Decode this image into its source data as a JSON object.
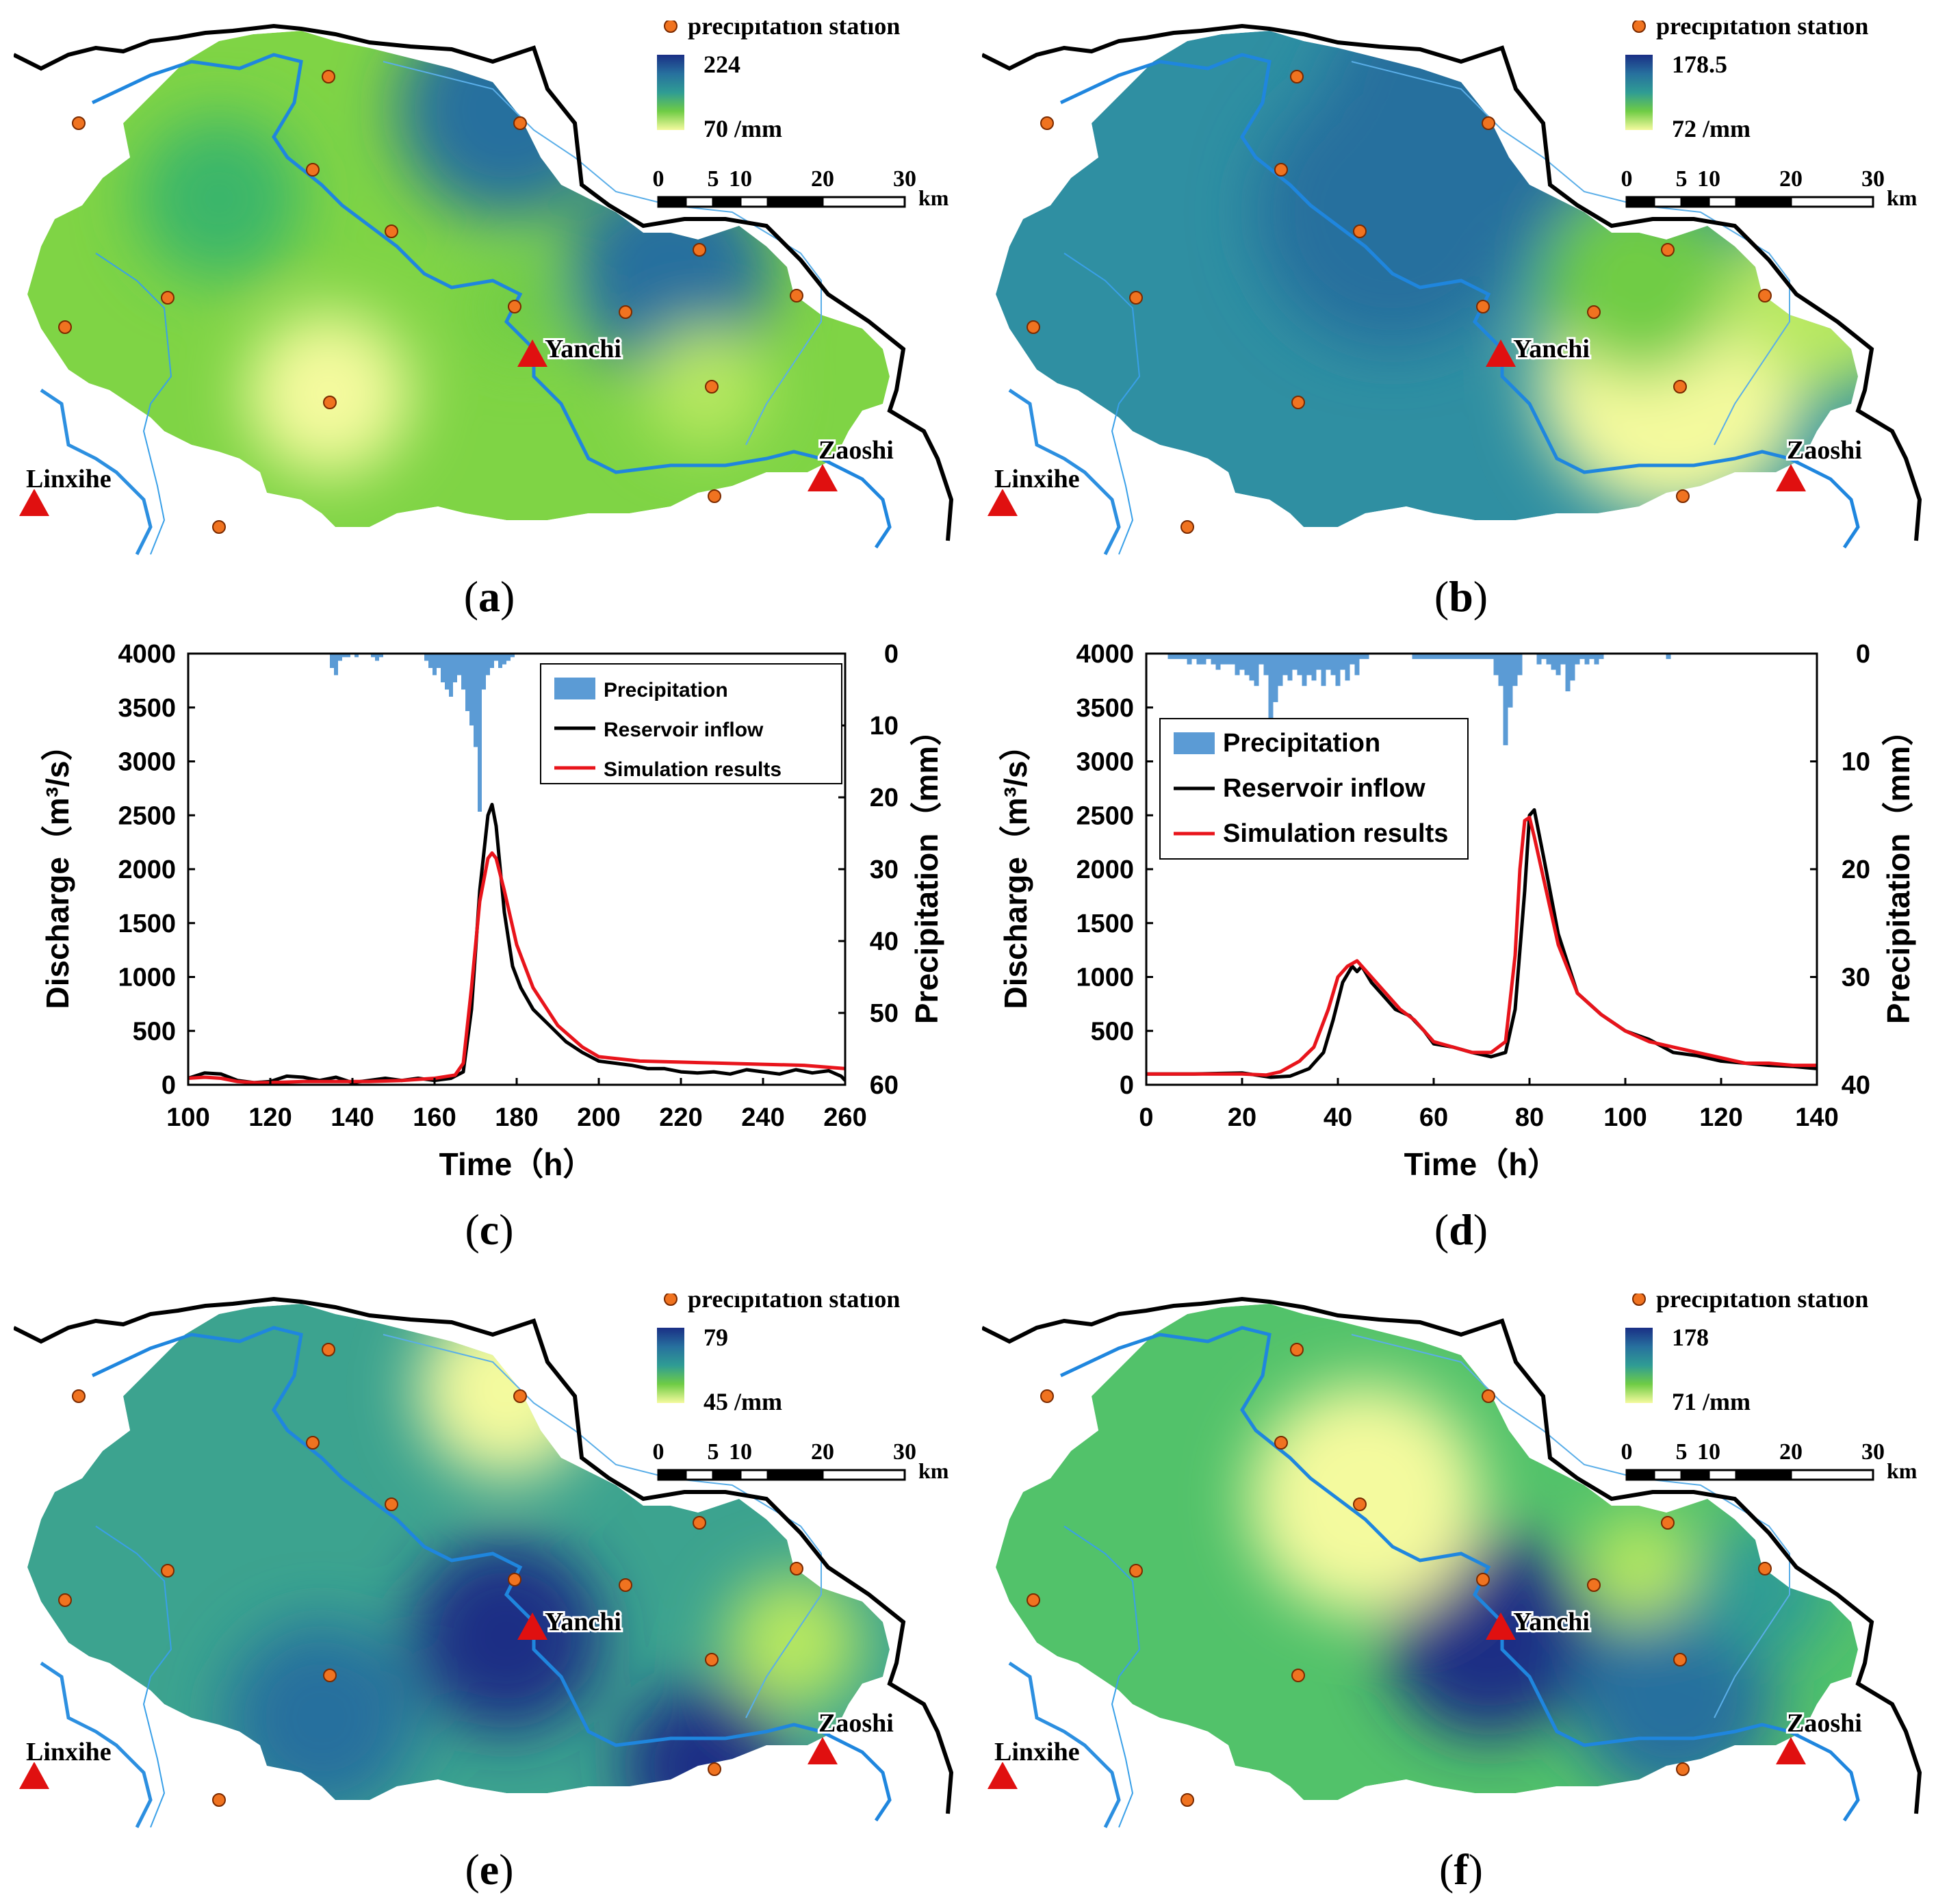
{
  "maps": [
    {
      "id": "a",
      "caption_letter": "a",
      "legend_title": "precipitation station",
      "legend_max": "224",
      "legend_min": "70 /mm",
      "colors": {
        "base": "#7fd445",
        "high": "#1a2f85",
        "low": "#f4fa9e"
      }
    },
    {
      "id": "b",
      "caption_letter": "b",
      "legend_title": "precipitation station",
      "legend_max": "178.5",
      "legend_min": "72 /mm",
      "colors": {
        "base": "#2f8fa2",
        "high": "#1a2f85",
        "low": "#f4fa9e"
      }
    },
    {
      "id": "e",
      "caption_letter": "e",
      "legend_title": "precipitation station",
      "legend_max": "79",
      "legend_min": "45 /mm",
      "colors": {
        "base": "#3ca38f",
        "high": "#1a2f85",
        "low": "#f4fa9e"
      }
    },
    {
      "id": "f",
      "caption_letter": "f",
      "legend_title": "precipitation station",
      "legend_max": "178",
      "legend_min": "71 /mm",
      "colors": {
        "base": "#52c26a",
        "high": "#1a2f85",
        "low": "#f4fa9e"
      }
    }
  ],
  "map_labels": {
    "yanchi": "Yanchi",
    "zaoshi": "Zaoshi",
    "linxihe": "Linxihe"
  },
  "scale_bar": {
    "ticks": [
      "0",
      "5",
      "10",
      "20",
      "30"
    ],
    "unit": "km"
  },
  "chart_data": [
    {
      "id": "c",
      "caption_letter": "c",
      "type": "line",
      "xlabel": "Time（h）",
      "ylabel": "Discharge（m³/s）",
      "y2label": "Precipitation（mm）",
      "xlim": [
        100,
        260
      ],
      "ylim": [
        0,
        4000
      ],
      "y2lim": [
        0,
        60
      ],
      "xticks": [
        "100",
        "120",
        "140",
        "160",
        "180",
        "200",
        "220",
        "240",
        "260"
      ],
      "yticks": [
        "0",
        "500",
        "1000",
        "1500",
        "2000",
        "2500",
        "3000",
        "3500",
        "4000"
      ],
      "y2ticks": [
        "0",
        "10",
        "20",
        "30",
        "40",
        "50",
        "60"
      ],
      "legend": [
        "Precipitation",
        "Reservoir inflow",
        "Simulation results"
      ],
      "series": [
        {
          "name": "Reservoir inflow",
          "color": "#000000",
          "x": [
            100,
            104,
            108,
            112,
            116,
            120,
            124,
            128,
            132,
            136,
            140,
            144,
            148,
            152,
            156,
            160,
            164,
            167,
            169,
            171,
            173,
            174,
            175,
            177,
            179,
            181,
            184,
            188,
            192,
            196,
            200,
            204,
            208,
            212,
            216,
            220,
            224,
            228,
            232,
            236,
            240,
            244,
            248,
            252,
            256,
            259,
            260
          ],
          "y": [
            60,
            110,
            100,
            40,
            20,
            30,
            80,
            70,
            40,
            70,
            20,
            40,
            60,
            40,
            60,
            40,
            60,
            120,
            700,
            1800,
            2500,
            2600,
            2400,
            1600,
            1100,
            900,
            700,
            550,
            400,
            300,
            220,
            200,
            180,
            150,
            150,
            120,
            110,
            120,
            100,
            140,
            120,
            100,
            140,
            110,
            130,
            80,
            40
          ]
        },
        {
          "name": "Simulation results",
          "color": "#e8141b",
          "x": [
            100,
            104,
            108,
            112,
            116,
            120,
            128,
            136,
            144,
            152,
            160,
            165,
            167,
            169,
            171,
            173,
            174,
            175,
            177,
            180,
            184,
            190,
            196,
            200,
            210,
            220,
            230,
            240,
            250,
            260
          ],
          "y": [
            60,
            70,
            60,
            30,
            20,
            20,
            30,
            30,
            30,
            40,
            60,
            90,
            200,
            900,
            1700,
            2100,
            2150,
            2100,
            1800,
            1300,
            900,
            550,
            350,
            260,
            220,
            210,
            200,
            190,
            180,
            150
          ]
        }
      ],
      "precip": {
        "name": "Precipitation",
        "color": "#5b9bd5",
        "x": [
          135,
          136,
          137,
          138,
          139,
          141,
          145,
          146,
          147,
          158,
          159,
          160,
          161,
          162,
          163,
          164,
          165,
          166,
          167,
          168,
          169,
          170,
          171,
          172,
          173,
          174,
          175,
          176,
          177,
          178,
          179
        ],
        "y": [
          2,
          3,
          1,
          0.5,
          0.5,
          0.5,
          0.5,
          1,
          0.5,
          1,
          2,
          3,
          2,
          4,
          5,
          6,
          4,
          3,
          5,
          8,
          10,
          13,
          22,
          5,
          3,
          2,
          1,
          2,
          1.5,
          1,
          0.5
        ]
      }
    },
    {
      "id": "d",
      "caption_letter": "d",
      "type": "line",
      "xlabel": "Time（h）",
      "ylabel": "Discharge（m³/s）",
      "y2label": "Precipitation（mm）",
      "xlim": [
        0,
        140
      ],
      "ylim": [
        0,
        4000
      ],
      "y2lim": [
        0,
        40
      ],
      "xticks": [
        "0",
        "20",
        "40",
        "60",
        "80",
        "100",
        "120",
        "140"
      ],
      "yticks": [
        "0",
        "500",
        "1000",
        "1500",
        "2000",
        "2500",
        "3000",
        "3500",
        "4000"
      ],
      "y2ticks": [
        "0",
        "10",
        "20",
        "30",
        "40"
      ],
      "legend": [
        "Precipitation",
        "Reservoir inflow",
        "Simulation results"
      ],
      "series": [
        {
          "name": "Reservoir inflow",
          "color": "#000000",
          "x": [
            0,
            10,
            20,
            26,
            30,
            34,
            37,
            39,
            41,
            43,
            44,
            45,
            47,
            49,
            52,
            55,
            58,
            60,
            64,
            68,
            72,
            75,
            77,
            79,
            80,
            81,
            83,
            86,
            90,
            95,
            100,
            105,
            110,
            115,
            120,
            125,
            130,
            135,
            140
          ],
          "y": [
            100,
            100,
            110,
            70,
            80,
            150,
            300,
            600,
            950,
            1100,
            1050,
            1100,
            950,
            850,
            700,
            640,
            500,
            380,
            350,
            300,
            260,
            300,
            700,
            1800,
            2500,
            2550,
            2100,
            1400,
            850,
            650,
            500,
            420,
            300,
            270,
            220,
            200,
            180,
            170,
            150
          ]
        },
        {
          "name": "Simulation results",
          "color": "#e8141b",
          "x": [
            0,
            10,
            20,
            25,
            28,
            32,
            35,
            38,
            40,
            42,
            44,
            45,
            47,
            50,
            53,
            56,
            60,
            64,
            68,
            72,
            75,
            77,
            78,
            79,
            80,
            81,
            83,
            86,
            90,
            95,
            100,
            105,
            110,
            115,
            120,
            125,
            130,
            135,
            140
          ],
          "y": [
            100,
            100,
            100,
            90,
            120,
            220,
            350,
            700,
            1000,
            1100,
            1150,
            1100,
            1000,
            850,
            700,
            600,
            400,
            350,
            300,
            300,
            400,
            1200,
            2000,
            2450,
            2480,
            2300,
            1900,
            1300,
            850,
            650,
            500,
            400,
            350,
            300,
            250,
            200,
            200,
            180,
            180
          ]
        }
      ],
      "precip": {
        "name": "Precipitation",
        "color": "#5b9bd5",
        "x": [
          5,
          6,
          7,
          8,
          9,
          10,
          11,
          12,
          13,
          14,
          15,
          16,
          17,
          18,
          19,
          20,
          21,
          22,
          23,
          24,
          25,
          26,
          27,
          28,
          29,
          30,
          31,
          32,
          33,
          34,
          35,
          36,
          37,
          38,
          39,
          40,
          41,
          42,
          43,
          44,
          45,
          46,
          56,
          57,
          58,
          59,
          60,
          61,
          62,
          63,
          64,
          65,
          66,
          67,
          68,
          69,
          70,
          71,
          72,
          73,
          74,
          75,
          76,
          77,
          78,
          82,
          83,
          84,
          85,
          86,
          87,
          88,
          89,
          90,
          91,
          92,
          93,
          94,
          95,
          109
        ],
        "y": [
          0.5,
          0.5,
          0.5,
          0.5,
          1,
          0.5,
          1,
          1,
          0.5,
          1,
          1.5,
          1,
          1,
          1,
          2,
          1.5,
          2,
          2.5,
          3,
          1,
          2,
          6,
          4.5,
          3,
          2,
          2.5,
          1.5,
          2,
          3,
          2,
          2.5,
          1.5,
          3,
          1.5,
          2,
          3,
          1.5,
          2.5,
          1,
          2,
          0.5,
          0.5,
          0.5,
          0.5,
          0.5,
          0.5,
          0.5,
          0.5,
          0.5,
          0.5,
          0.5,
          0.5,
          0.5,
          0.5,
          0.5,
          0.5,
          0.5,
          0.5,
          0.5,
          2,
          3,
          8.5,
          5,
          3,
          2,
          1,
          0.5,
          1,
          1.5,
          2,
          1,
          3.5,
          2.5,
          1,
          0.5,
          1,
          0.5,
          1,
          0.5,
          0.5
        ]
      }
    }
  ]
}
